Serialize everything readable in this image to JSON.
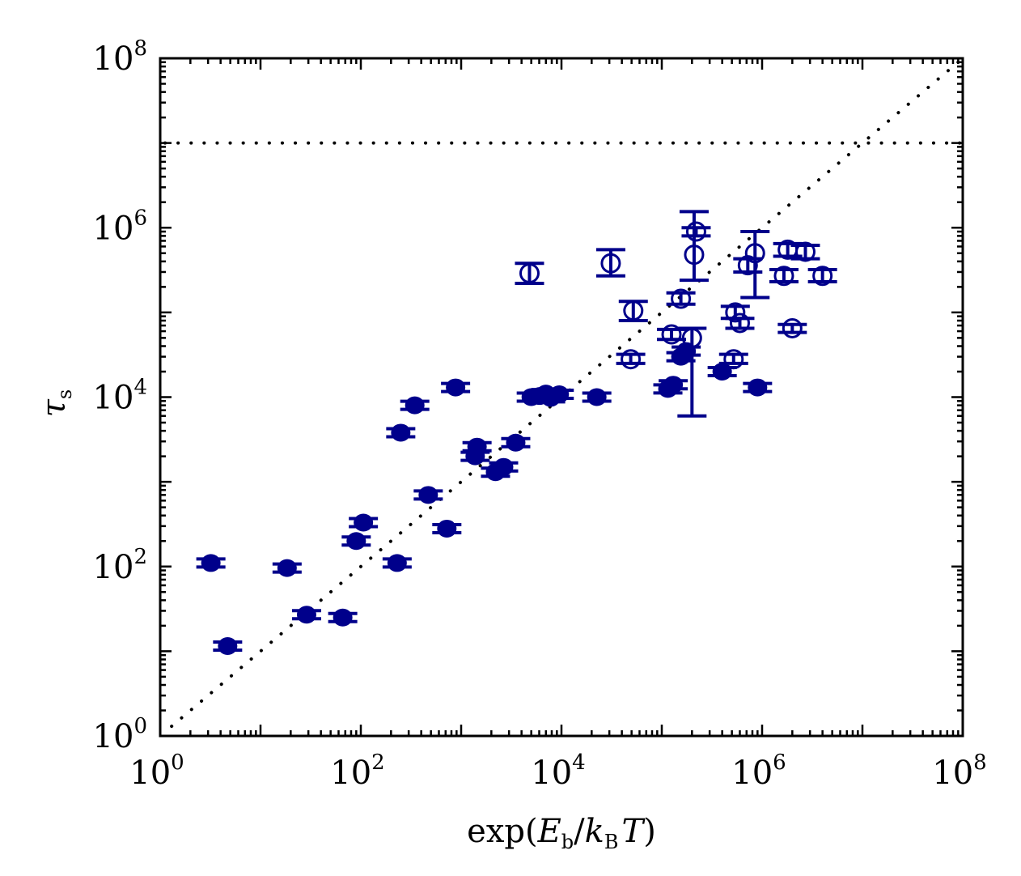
{
  "chart_data": {
    "type": "scatter",
    "xscale": "log",
    "yscale": "log",
    "xlim": [
      1,
      100000000
    ],
    "ylim": [
      1,
      100000000
    ],
    "xlabel": {
      "base": "exp(",
      "E": "E",
      "sub_b": "b",
      "slash": "/",
      "k": "k",
      "sub_B": "B",
      "T": "T",
      "close": ")"
    },
    "ylabel": {
      "tau": "τ",
      "sub_s": "s"
    },
    "x_ticks": [
      {
        "value": 1,
        "base": "10",
        "exp": "0"
      },
      {
        "value": 100,
        "base": "10",
        "exp": "2"
      },
      {
        "value": 10000,
        "base": "10",
        "exp": "4"
      },
      {
        "value": 1000000,
        "base": "10",
        "exp": "6"
      },
      {
        "value": 100000000,
        "base": "10",
        "exp": "8"
      }
    ],
    "y_ticks": [
      {
        "value": 1,
        "base": "10",
        "exp": "0"
      },
      {
        "value": 100,
        "base": "10",
        "exp": "2"
      },
      {
        "value": 10000,
        "base": "10",
        "exp": "4"
      },
      {
        "value": 1000000,
        "base": "10",
        "exp": "6"
      },
      {
        "value": 100000000,
        "base": "10",
        "exp": "8"
      }
    ],
    "reference_lines": [
      {
        "name": "identity-line",
        "kind": "diagonal",
        "style": "dotted"
      },
      {
        "name": "horizontal-limit-line",
        "kind": "horizontal",
        "y": 10000000,
        "style": "dotted"
      }
    ],
    "colors": {
      "marker": "#00008b",
      "reference": "#000000"
    },
    "series": [
      {
        "name": "filled",
        "marker": "filled-circle",
        "points": [
          {
            "x": 3.2,
            "y": 110
          },
          {
            "x": 4.7,
            "y": 11.5
          },
          {
            "x": 18.4,
            "y": 96
          },
          {
            "x": 28.8,
            "y": 27
          },
          {
            "x": 66,
            "y": 25
          },
          {
            "x": 90,
            "y": 200
          },
          {
            "x": 106,
            "y": 330
          },
          {
            "x": 230,
            "y": 110
          },
          {
            "x": 250,
            "y": 3800
          },
          {
            "x": 345,
            "y": 8000
          },
          {
            "x": 470,
            "y": 700
          },
          {
            "x": 720,
            "y": 280
          },
          {
            "x": 880,
            "y": 13000
          },
          {
            "x": 1380,
            "y": 2000
          },
          {
            "x": 1440,
            "y": 2600
          },
          {
            "x": 2200,
            "y": 1300
          },
          {
            "x": 2650,
            "y": 1500
          },
          {
            "x": 3500,
            "y": 2900
          },
          {
            "x": 5000,
            "y": 10000
          },
          {
            "x": 6050,
            "y": 10300
          },
          {
            "x": 7000,
            "y": 11000
          },
          {
            "x": 7800,
            "y": 9800
          },
          {
            "x": 9500,
            "y": 10800
          },
          {
            "x": 22500,
            "y": 10000
          },
          {
            "x": 115000,
            "y": 12500
          },
          {
            "x": 130000,
            "y": 14000
          },
          {
            "x": 155000,
            "y": 30000
          },
          {
            "x": 175000,
            "y": 35000
          },
          {
            "x": 400000,
            "y": 20000
          },
          {
            "x": 900000,
            "y": 13000
          }
        ]
      },
      {
        "name": "open",
        "marker": "open-circle",
        "points": [
          {
            "x": 4800,
            "y": 290000,
            "ylo": 220000,
            "yhi": 380000
          },
          {
            "x": 31000,
            "y": 380000,
            "ylo": 270000,
            "yhi": 550000
          },
          {
            "x": 49000,
            "y": 28000,
            "ylo": 25000,
            "yhi": 32000
          },
          {
            "x": 52000,
            "y": 105000,
            "ylo": 80000,
            "yhi": 135000
          },
          {
            "x": 125000,
            "y": 55000,
            "ylo": 48000,
            "yhi": 63000
          },
          {
            "x": 155000,
            "y": 145000,
            "ylo": 125000,
            "yhi": 170000
          },
          {
            "x": 200000,
            "y": 50000,
            "ylo": 6000,
            "yhi": 65000
          },
          {
            "x": 210000,
            "y": 480000,
            "ylo": 240000,
            "yhi": 1550000
          },
          {
            "x": 220000,
            "y": 900000,
            "ylo": 800000,
            "yhi": 1000000
          },
          {
            "x": 520000,
            "y": 28000,
            "ylo": 25000,
            "yhi": 32000
          },
          {
            "x": 540000,
            "y": 100000,
            "ylo": 85000,
            "yhi": 118000
          },
          {
            "x": 600000,
            "y": 75000,
            "ylo": 65000,
            "yhi": 85000
          },
          {
            "x": 720000,
            "y": 360000,
            "ylo": 300000,
            "yhi": 430000
          },
          {
            "x": 850000,
            "y": 500000,
            "ylo": 150000,
            "yhi": 900000
          },
          {
            "x": 1650000,
            "y": 270000,
            "ylo": 230000,
            "yhi": 320000
          },
          {
            "x": 1800000,
            "y": 550000,
            "ylo": 460000,
            "yhi": 650000
          },
          {
            "x": 2000000,
            "y": 65000,
            "ylo": 58000,
            "yhi": 72000
          },
          {
            "x": 2700000,
            "y": 520000,
            "ylo": 430000,
            "yhi": 620000
          },
          {
            "x": 4000000,
            "y": 270000,
            "ylo": 230000,
            "yhi": 320000
          }
        ]
      }
    ]
  }
}
